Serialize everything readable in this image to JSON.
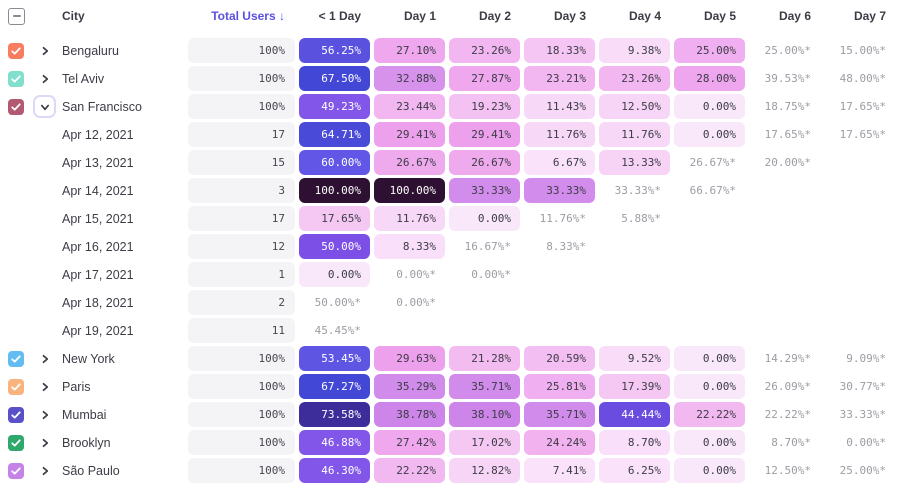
{
  "header": {
    "select_all_state": "indeterminate",
    "city": "City",
    "total_users": "Total Users",
    "sort_arrow": "↓",
    "days": [
      "< 1 Day",
      "Day 1",
      "Day 2",
      "Day 3",
      "Day 4",
      "Day 5",
      "Day 6",
      "Day 7"
    ]
  },
  "colors": {
    "sorted_header_text": "#5a51e0",
    "header_text": "#3c3c46",
    "pill_bg": "#f4f4f6",
    "estimated_text": "#9c9ca4",
    "checkbox_border": "#8a8a94",
    "expanded_chevron_box_border": "#dcd8f7",
    "heatmap_min": "#f9e8f9",
    "heatmap_max": "#2e1132"
  },
  "rows": [
    {
      "type": "city",
      "label": "Bengaluru",
      "checkbox_color": "#f87c5f",
      "expanded": false,
      "total": "100%",
      "cells": [
        {
          "v": "56.25%",
          "bg": "#5a52de"
        },
        {
          "v": "27.10%",
          "bg": "#efa8ee"
        },
        {
          "v": "23.26%",
          "bg": "#f2b6f0"
        },
        {
          "v": "18.33%",
          "bg": "#f5c5f3"
        },
        {
          "v": "9.38%",
          "bg": "#f9ddf8"
        },
        {
          "v": "25.00%",
          "bg": "#f0aff0"
        },
        {
          "v": "25.00%*",
          "est": true
        },
        {
          "v": "15.00%*",
          "est": true
        }
      ]
    },
    {
      "type": "city",
      "label": "Tel Aviv",
      "checkbox_color": "#82dfcd",
      "expanded": false,
      "total": "100%",
      "cells": [
        {
          "v": "67.50%",
          "bg": "#4347d6"
        },
        {
          "v": "32.88%",
          "bg": "#d792ec"
        },
        {
          "v": "27.87%",
          "bg": "#efa8ee"
        },
        {
          "v": "23.21%",
          "bg": "#f2b6f0"
        },
        {
          "v": "23.26%",
          "bg": "#f2b6f0"
        },
        {
          "v": "28.00%",
          "bg": "#eea6ee"
        },
        {
          "v": "39.53%*",
          "est": true
        },
        {
          "v": "48.00%*",
          "est": true
        }
      ]
    },
    {
      "type": "city",
      "label": "San Francisco",
      "checkbox_color": "#b25a72",
      "expanded": true,
      "total": "100%",
      "cells": [
        {
          "v": "49.23%",
          "bg": "#8156e8"
        },
        {
          "v": "23.44%",
          "bg": "#f2b6f0"
        },
        {
          "v": "19.23%",
          "bg": "#f4c2f2"
        },
        {
          "v": "11.43%",
          "bg": "#f8d8f7"
        },
        {
          "v": "12.50%",
          "bg": "#f7d5f6"
        },
        {
          "v": "0.00%",
          "bg": "#f9e8f9"
        },
        {
          "v": "18.75%*",
          "est": true
        },
        {
          "v": "17.65%*",
          "est": true
        }
      ]
    },
    {
      "type": "date",
      "label": "Apr 12, 2021",
      "total": "17",
      "cells": [
        {
          "v": "64.71%",
          "bg": "#4a4ad8"
        },
        {
          "v": "29.41%",
          "bg": "#eda1ed"
        },
        {
          "v": "29.41%",
          "bg": "#eda1ed"
        },
        {
          "v": "11.76%",
          "bg": "#f8d8f7"
        },
        {
          "v": "11.76%",
          "bg": "#f8d8f7"
        },
        {
          "v": "0.00%",
          "bg": "#f9e8f9"
        },
        {
          "v": "17.65%*",
          "est": true
        },
        {
          "v": "17.65%*",
          "est": true
        }
      ]
    },
    {
      "type": "date",
      "label": "Apr 13, 2021",
      "total": "15",
      "cells": [
        {
          "v": "60.00%",
          "bg": "#6156e6"
        },
        {
          "v": "26.67%",
          "bg": "#efaaee"
        },
        {
          "v": "26.67%",
          "bg": "#efaaee"
        },
        {
          "v": "6.67%",
          "bg": "#fae3fa"
        },
        {
          "v": "13.33%",
          "bg": "#f7d3f6"
        },
        {
          "v": "26.67%*",
          "est": true
        },
        {
          "v": "20.00%*",
          "est": true
        },
        null
      ]
    },
    {
      "type": "date",
      "label": "Apr 14, 2021",
      "total": "3",
      "cells": [
        {
          "v": "100.00%",
          "bg": "#2e1132"
        },
        {
          "v": "100.00%",
          "bg": "#2e1132"
        },
        {
          "v": "33.33%",
          "bg": "#d28dec"
        },
        {
          "v": "33.33%",
          "bg": "#d28dec"
        },
        {
          "v": "33.33%*",
          "est": true
        },
        {
          "v": "66.67%*",
          "est": true
        },
        null,
        null
      ]
    },
    {
      "type": "date",
      "label": "Apr 15, 2021",
      "total": "17",
      "cells": [
        {
          "v": "17.65%",
          "bg": "#f5c8f4"
        },
        {
          "v": "11.76%",
          "bg": "#f8d8f7"
        },
        {
          "v": "0.00%",
          "bg": "#f9e8f9"
        },
        {
          "v": "11.76%*",
          "est": true
        },
        {
          "v": "5.88%*",
          "est": true
        },
        null,
        null,
        null
      ]
    },
    {
      "type": "date",
      "label": "Apr 16, 2021",
      "total": "12",
      "cells": [
        {
          "v": "50.00%",
          "bg": "#7c50e7"
        },
        {
          "v": "8.33%",
          "bg": "#f9dff9"
        },
        {
          "v": "16.67%*",
          "est": true
        },
        {
          "v": "8.33%*",
          "est": true
        },
        null,
        null,
        null,
        null
      ]
    },
    {
      "type": "date",
      "label": "Apr 17, 2021",
      "total": "1",
      "cells": [
        {
          "v": "0.00%",
          "bg": "#f9e8f9"
        },
        {
          "v": "0.00%*",
          "est": true
        },
        {
          "v": "0.00%*",
          "est": true
        },
        null,
        null,
        null,
        null,
        null
      ]
    },
    {
      "type": "date",
      "label": "Apr 18, 2021",
      "total": "2",
      "cells": [
        {
          "v": "50.00%*",
          "est": true
        },
        {
          "v": "0.00%*",
          "est": true
        },
        null,
        null,
        null,
        null,
        null,
        null
      ]
    },
    {
      "type": "date",
      "label": "Apr 19, 2021",
      "total": "11",
      "cells": [
        {
          "v": "45.45%*",
          "est": true
        },
        null,
        null,
        null,
        null,
        null,
        null,
        null
      ]
    },
    {
      "type": "city",
      "label": "New York",
      "checkbox_color": "#64bdf2",
      "expanded": false,
      "total": "100%",
      "cells": [
        {
          "v": "53.45%",
          "bg": "#5e55e2"
        },
        {
          "v": "29.63%",
          "bg": "#eda1ed"
        },
        {
          "v": "21.28%",
          "bg": "#f3bcf1"
        },
        {
          "v": "20.59%",
          "bg": "#f3bef1"
        },
        {
          "v": "9.52%",
          "bg": "#f9ddf8"
        },
        {
          "v": "0.00%",
          "bg": "#f9e8f9"
        },
        {
          "v": "14.29%*",
          "est": true
        },
        {
          "v": "9.09%*",
          "est": true
        }
      ]
    },
    {
      "type": "city",
      "label": "Paris",
      "checkbox_color": "#f9b37e",
      "expanded": false,
      "total": "100%",
      "cells": [
        {
          "v": "67.27%",
          "bg": "#4347d6"
        },
        {
          "v": "35.29%",
          "bg": "#d18bea"
        },
        {
          "v": "35.71%",
          "bg": "#d18bea"
        },
        {
          "v": "25.81%",
          "bg": "#f0aff0"
        },
        {
          "v": "17.39%",
          "bg": "#f5c8f4"
        },
        {
          "v": "0.00%",
          "bg": "#f9e8f9"
        },
        {
          "v": "26.09%*",
          "est": true
        },
        {
          "v": "30.77%*",
          "est": true
        }
      ]
    },
    {
      "type": "city",
      "label": "Mumbai",
      "checkbox_color": "#5a50c8",
      "expanded": false,
      "total": "100%",
      "cells": [
        {
          "v": "73.58%",
          "bg": "#3c2d9a"
        },
        {
          "v": "38.78%",
          "bg": "#cd85ea"
        },
        {
          "v": "38.10%",
          "bg": "#cd85ea"
        },
        {
          "v": "35.71%",
          "bg": "#d18bea"
        },
        {
          "v": "44.44%",
          "bg": "#6a4ce0"
        },
        {
          "v": "22.22%",
          "bg": "#f2b9f0"
        },
        {
          "v": "22.22%*",
          "est": true
        },
        {
          "v": "33.33%*",
          "est": true
        }
      ]
    },
    {
      "type": "city",
      "label": "Brooklyn",
      "checkbox_color": "#2fa86b",
      "expanded": false,
      "total": "100%",
      "cells": [
        {
          "v": "46.88%",
          "bg": "#8156e8"
        },
        {
          "v": "27.42%",
          "bg": "#efa8ee"
        },
        {
          "v": "17.02%",
          "bg": "#f5c8f4"
        },
        {
          "v": "24.24%",
          "bg": "#f1b2ef"
        },
        {
          "v": "8.70%",
          "bg": "#f9dff9"
        },
        {
          "v": "0.00%",
          "bg": "#f9e8f9"
        },
        {
          "v": "8.70%*",
          "est": true
        },
        {
          "v": "0.00%*",
          "est": true
        }
      ]
    },
    {
      "type": "city",
      "label": "São Paulo",
      "checkbox_color": "#c583e8",
      "expanded": false,
      "total": "100%",
      "cells": [
        {
          "v": "46.30%",
          "bg": "#8156e8"
        },
        {
          "v": "22.22%",
          "bg": "#f2b9f0"
        },
        {
          "v": "12.82%",
          "bg": "#f7d5f6"
        },
        {
          "v": "7.41%",
          "bg": "#fae3fa"
        },
        {
          "v": "6.25%",
          "bg": "#fae3fa"
        },
        {
          "v": "0.00%",
          "bg": "#f9e8f9"
        },
        {
          "v": "12.50%*",
          "est": true
        },
        {
          "v": "25.00%*",
          "est": true
        }
      ]
    }
  ]
}
